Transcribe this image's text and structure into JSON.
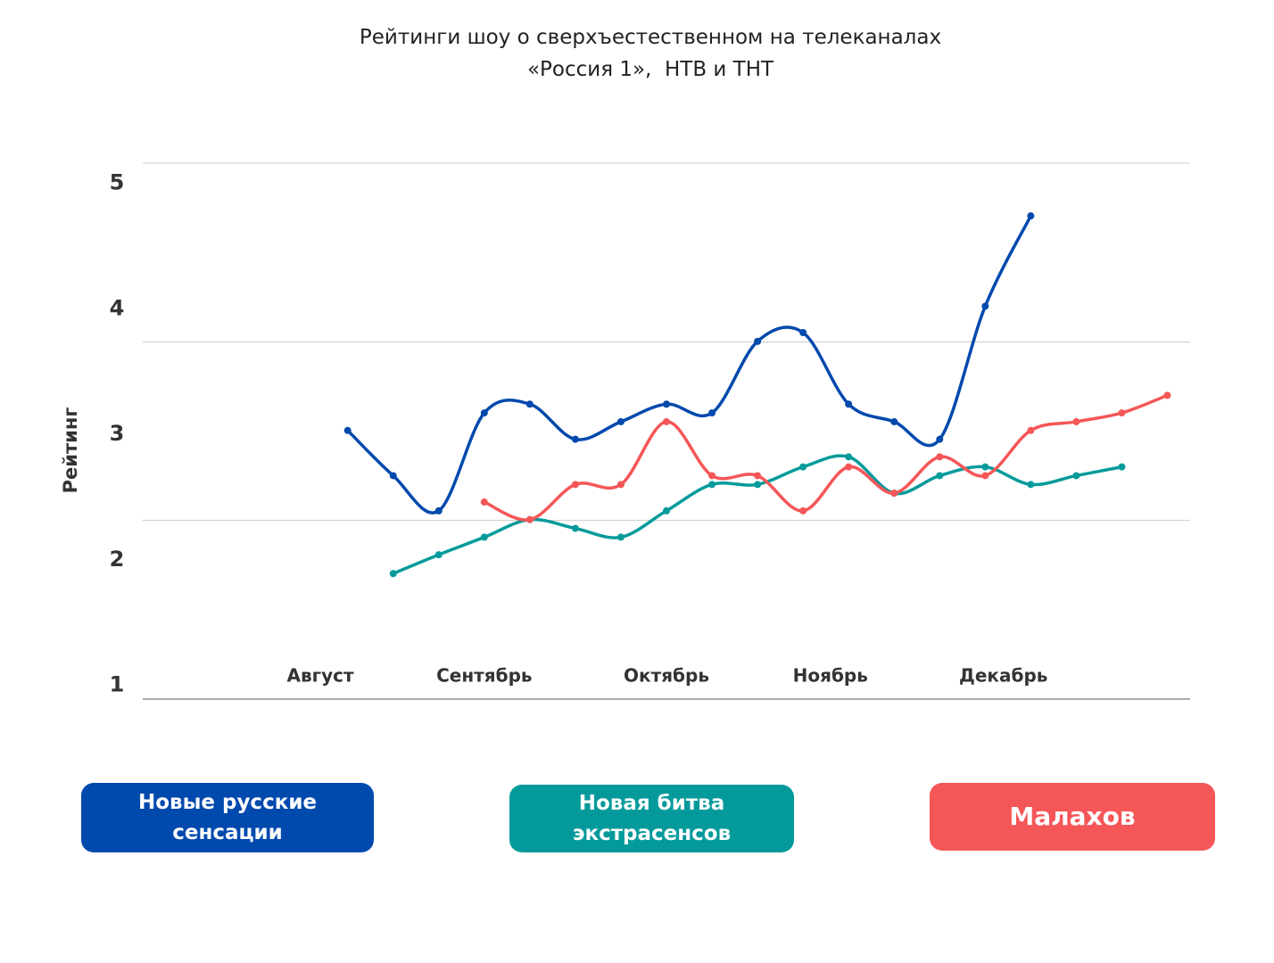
{
  "chart_data": {
    "type": "line",
    "title": "Рейтинги шоу о сверхъестественном на телеканалах\n«Россия 1»,  НТВ и ТНТ",
    "y_label": "Рейтинг",
    "x": [
      0,
      1,
      2,
      3,
      4,
      5,
      6,
      7,
      8,
      9,
      10,
      11,
      12,
      13,
      14,
      15,
      16,
      17,
      18
    ],
    "xlim": [
      -4.5,
      18.5
    ],
    "xticks": [
      {
        "value": -0.6,
        "label": "Август"
      },
      {
        "value": 3,
        "label": "Сентябрь"
      },
      {
        "value": 7,
        "label": "Октябрь"
      },
      {
        "value": 10.6,
        "label": "Ноябрь"
      },
      {
        "value": 14.4,
        "label": "Декабрь"
      }
    ],
    "ylim": [
      0.89,
      5.16
    ],
    "yticks": [
      1,
      2,
      3,
      4,
      5
    ],
    "grid": true,
    "series": [
      {
        "name": "Новые русские сенсации",
        "color": "#0049ad",
        "values": [
          3.03,
          2.67,
          2.39,
          3.17,
          3.24,
          2.96,
          3.1,
          3.24,
          3.17,
          3.74,
          3.81,
          3.24,
          3.1,
          2.96,
          4.02,
          4.74,
          null,
          null,
          null
        ]
      },
      {
        "name": "Новая битва экстрасенсов",
        "color": "#049a9b",
        "values": [
          null,
          1.89,
          2.04,
          2.18,
          2.32,
          2.25,
          2.18,
          2.39,
          2.6,
          2.6,
          2.74,
          2.82,
          2.53,
          2.67,
          2.74,
          2.6,
          2.67,
          2.74,
          null
        ]
      },
      {
        "name": "Малахов",
        "color": "#f55657",
        "values": [
          null,
          null,
          null,
          2.46,
          2.32,
          2.6,
          2.6,
          3.1,
          2.67,
          2.67,
          2.39,
          2.74,
          2.53,
          2.82,
          2.67,
          3.03,
          3.1,
          3.17,
          3.31
        ]
      }
    ]
  }
}
